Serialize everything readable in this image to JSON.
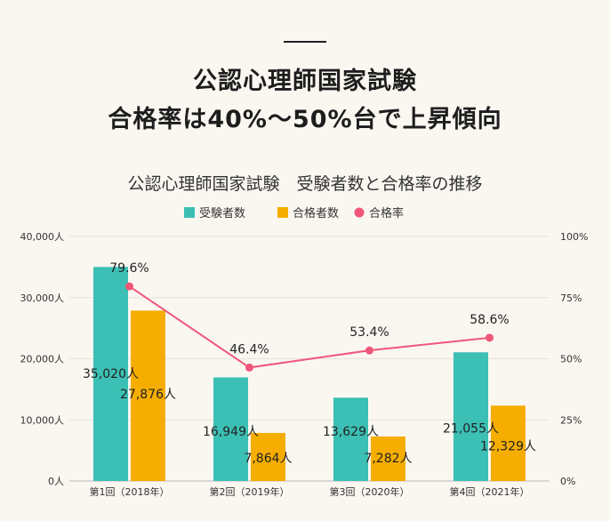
{
  "heading": {
    "line1": "公認心理師国家試験",
    "line2": "合格率は40%～50%台で上昇傾向"
  },
  "chart_data": {
    "type": "bar+line",
    "title": "公認心理師国家試験　受験者数と合格率の推移",
    "categories": [
      "第1回（2018年）",
      "第2回（2019年）",
      "第3回（2020年）",
      "第4回（2021年）"
    ],
    "series": [
      {
        "name": "受験者数",
        "type": "bar",
        "axis": "left",
        "color": "#3cbfb4",
        "values": [
          35020,
          16949,
          13629,
          21055
        ],
        "labels": [
          "35,020人",
          "16,949人",
          "13,629人",
          "21,055人"
        ]
      },
      {
        "name": "合格者数",
        "type": "bar",
        "axis": "left",
        "color": "#f5ad00",
        "values": [
          27876,
          7864,
          7282,
          12329
        ],
        "labels": [
          "27,876人",
          "7,864人",
          "7,282人",
          "12,329人"
        ]
      },
      {
        "name": "合格率",
        "type": "line",
        "axis": "right",
        "color": "#f0567a",
        "values": [
          79.6,
          46.4,
          53.4,
          58.6
        ],
        "labels": [
          "79.6%",
          "46.4%",
          "53.4%",
          "58.6%"
        ]
      }
    ],
    "y_left": {
      "range": [
        0,
        40000
      ],
      "ticks": [
        0,
        10000,
        20000,
        30000,
        40000
      ],
      "tick_labels": [
        "0人",
        "10,000人",
        "20,000人",
        "30,000人",
        "40,000人"
      ]
    },
    "y_right": {
      "range": [
        0,
        100
      ],
      "ticks": [
        0,
        25,
        50,
        75,
        100
      ],
      "tick_labels": [
        "0%",
        "25%",
        "50%",
        "75%",
        "100%"
      ]
    },
    "grid": true,
    "legend_position": "top-center"
  }
}
